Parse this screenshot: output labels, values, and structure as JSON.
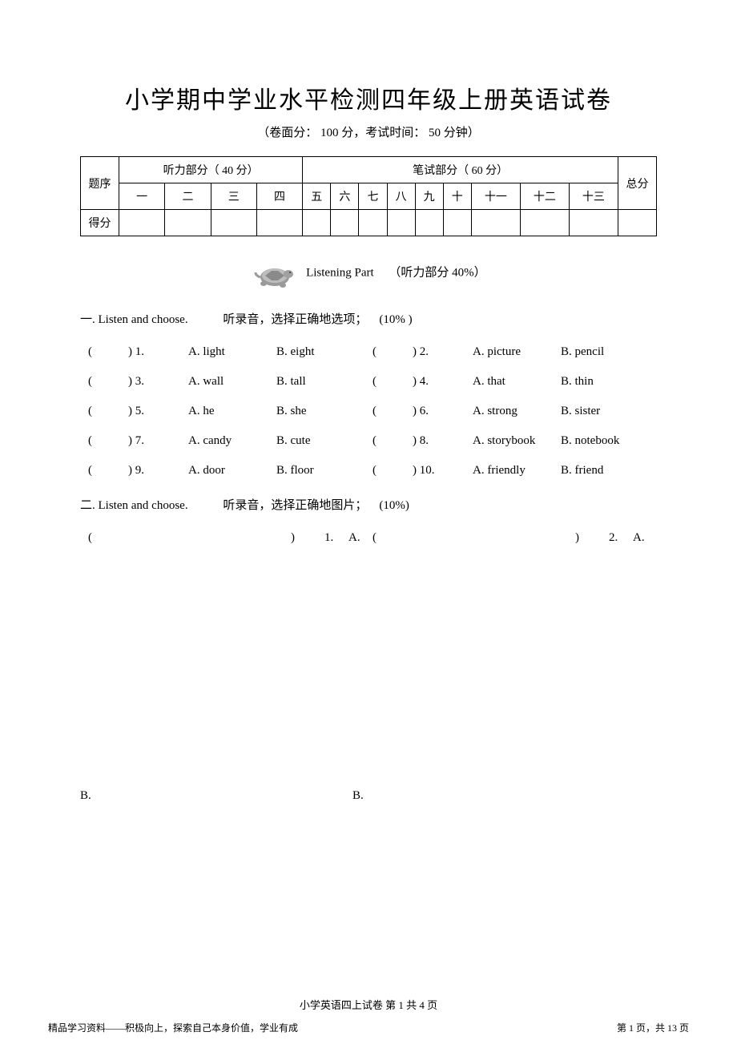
{
  "header": {
    "title": "小学期中学业水平检测四年级上册英语试卷",
    "subtitle_prefix": "（卷面分：",
    "full_score": "100",
    "subtitle_mid1": " 分，考试时间：",
    "duration": "50",
    "subtitle_mid2": " 分钟）"
  },
  "score_table": {
    "row_label": "题序",
    "listening_header": "听力部分（ 40 分）",
    "written_header": "笔试部分（ 60 分）",
    "total_label": "总分",
    "score_row_label": "得分",
    "cols_listening": [
      "一",
      "二",
      "三",
      "四"
    ],
    "cols_written": [
      "五",
      "六",
      "七",
      "八",
      "九",
      "十",
      "十一",
      "十二",
      "十三"
    ]
  },
  "listening_banner": {
    "text": "Listening Part",
    "note": "（听力部分   40%）"
  },
  "section1": {
    "number": "一",
    "en": ". Listen and choose.",
    "cn": "听录音，选择正确地选项；",
    "pct": "(10% )",
    "items": [
      {
        "n": "1",
        "a": "A. light",
        "b": "B. eight"
      },
      {
        "n": "2",
        "a": "A. picture",
        "b": "B. pencil"
      },
      {
        "n": "3",
        "a": "A. wall",
        "b": "B. tall"
      },
      {
        "n": "4",
        "a": "A. that",
        "b": "B. thin"
      },
      {
        "n": "5",
        "a": "A. he",
        "b": "B. she"
      },
      {
        "n": "6",
        "a": "A. strong",
        "b": "B. sister"
      },
      {
        "n": "7",
        "a": "A. candy",
        "b": "B. cute"
      },
      {
        "n": "8",
        "a": "A. storybook",
        "b": "B. notebook"
      },
      {
        "n": "9",
        "a": "A. door",
        "b": "B. floor"
      },
      {
        "n": "10",
        "a": "A. friendly",
        "b": "B. friend"
      }
    ]
  },
  "section2": {
    "number": "二",
    "en": ". Listen and choose.",
    "cn": "听录音，选择正确地图片；",
    "pct": "(10%)",
    "line1": {
      "q1_num": "1.",
      "q1_opt": "A.",
      "q2_num": "2.",
      "q2_opt": "A."
    },
    "line2": {
      "b1": "B.",
      "b2": "B."
    }
  },
  "footer": {
    "center": "小学英语四上试卷   第 1   共 4 页",
    "left": "精品学习资料——积极向上，探索自己本身价值，学业有成",
    "right": "第 1 页，共 13 页"
  }
}
